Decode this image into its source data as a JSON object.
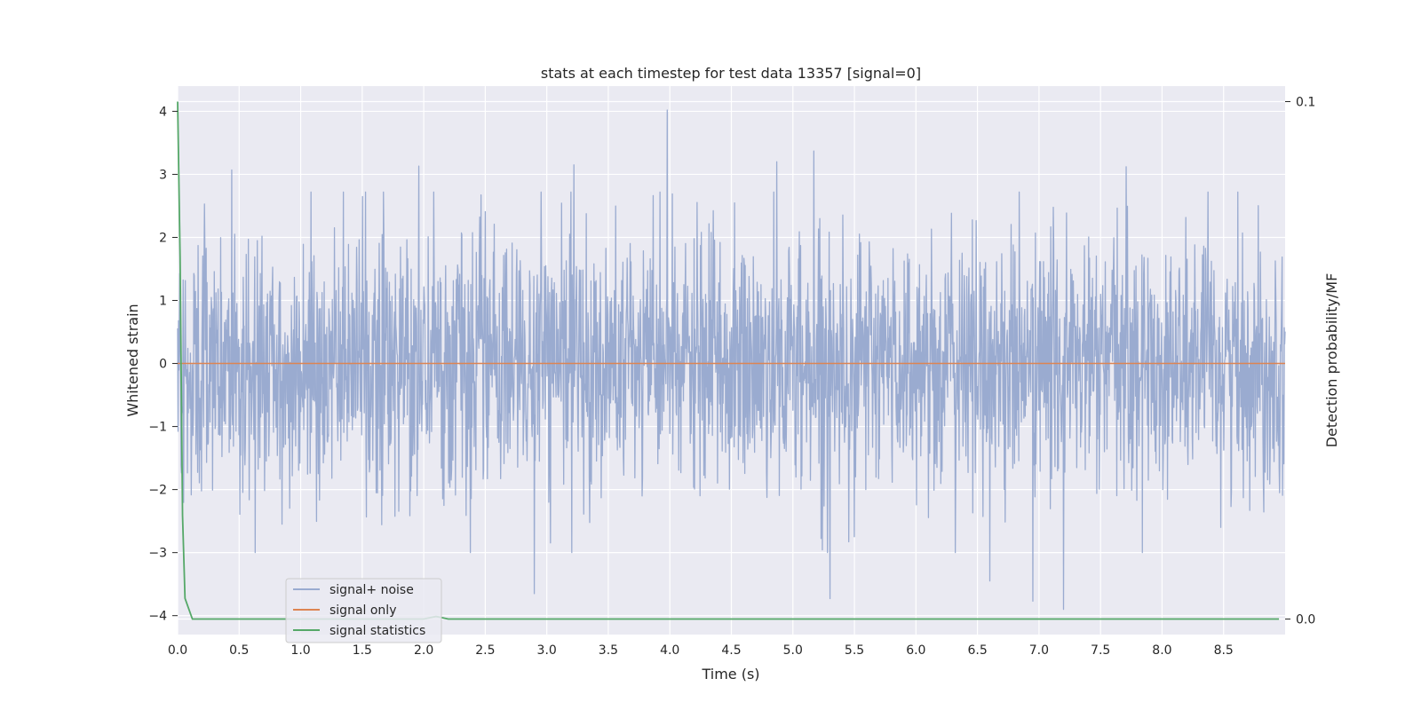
{
  "chart_data": {
    "type": "line",
    "title": "stats at each timestep for test data 13357 [signal=0]",
    "xlabel": "Time (s)",
    "ylabel": "Whitened strain",
    "y2label": "Detection probability/MF",
    "xlim": [
      0.0,
      9.0
    ],
    "ylim": [
      -4.3,
      4.4
    ],
    "y2lim": [
      -0.003,
      0.103
    ],
    "x_ticks": [
      "0.0",
      "0.5",
      "1.0",
      "1.5",
      "2.0",
      "2.5",
      "3.0",
      "3.5",
      "4.0",
      "4.5",
      "5.0",
      "5.5",
      "6.0",
      "6.5",
      "7.0",
      "7.5",
      "8.0",
      "8.5"
    ],
    "y_ticks": [
      "−4",
      "−3",
      "−2",
      "−1",
      "0",
      "1",
      "2",
      "3",
      "4"
    ],
    "y2_ticks": [
      "0.0",
      "0.1"
    ],
    "grid": true,
    "legend_position": "bottom-left",
    "series": [
      {
        "name": "signal+ noise",
        "axis": "left",
        "color": "#9aabd0",
        "description_points": "noise samples between about -4 and 4",
        "x_range": [
          0.0,
          9.0
        ],
        "envelope": [
          -3.9,
          4.02
        ],
        "peaks": [
          {
            "x": 3.98,
            "y": 4.02
          },
          {
            "x": 5.17,
            "y": 3.37
          },
          {
            "x": 4.87,
            "y": 3.2
          },
          {
            "x": 1.96,
            "y": 3.13
          },
          {
            "x": 7.71,
            "y": 3.12
          },
          {
            "x": 3.22,
            "y": 3.15
          },
          {
            "x": 0.44,
            "y": 3.07
          },
          {
            "x": 7.2,
            "y": -3.9
          },
          {
            "x": 6.95,
            "y": -3.77
          },
          {
            "x": 2.9,
            "y": -3.65
          },
          {
            "x": 5.3,
            "y": -3.73
          },
          {
            "x": 6.6,
            "y": -3.45
          }
        ]
      },
      {
        "name": "signal only",
        "axis": "left",
        "color": "#dd8452",
        "x": [
          0.0,
          9.0
        ],
        "y": [
          0.0,
          0.0
        ]
      },
      {
        "name": "signal statistics",
        "axis": "right",
        "color": "#55a868",
        "x": [
          0.0,
          0.02,
          0.04,
          0.06,
          0.12,
          0.5,
          1.0,
          1.5,
          2.0,
          2.1,
          2.2,
          3.0,
          4.0,
          5.0,
          6.0,
          7.0,
          8.0,
          8.95
        ],
        "y": [
          0.1,
          0.07,
          0.02,
          0.004,
          0.0,
          0.0,
          0.0,
          0.0,
          0.0,
          0.0005,
          0.0,
          0.0,
          0.0,
          0.0,
          0.0,
          0.0,
          0.0,
          0.0
        ]
      }
    ]
  },
  "colors": {
    "plot_background": "#eaeaf2",
    "grid": "#ffffff",
    "text": "#262626"
  }
}
